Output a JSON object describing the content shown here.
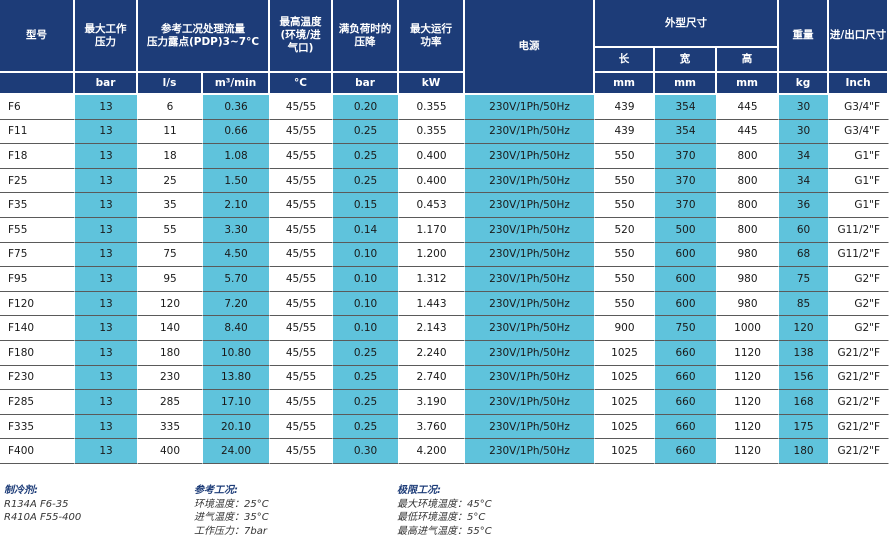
{
  "header": {
    "model": "型号",
    "max_pressure": "最大工作\n压力",
    "flow": "参考工况处理流量\n压力露点(PDP)3~7°C",
    "max_temp": "最高温度\n(环境/进\n气口)",
    "pressure_drop": "满负荷时的\n压降",
    "max_power": "最大运行\n功率",
    "power_supply": "电源",
    "dimensions": "外型尺寸",
    "weight": "重量",
    "inlet_outlet": "进/出口尺寸",
    "dim_length": "长",
    "dim_width": "宽",
    "dim_height": "高"
  },
  "units": {
    "pressure": "bar",
    "flow_ls": "l/s",
    "flow_m3": "m³/min",
    "temp": "°C",
    "drop": "bar",
    "power": "kW",
    "length": "mm",
    "width": "mm",
    "height": "mm",
    "weight": "kg",
    "inlet": "Inch"
  },
  "rows": [
    {
      "model": "F6",
      "pressure": "13",
      "flow_ls": "6",
      "flow_m3": "0.36",
      "temp": "45/55",
      "drop": "0.20",
      "power": "0.355",
      "supply": "230V/1Ph/50Hz",
      "length": "439",
      "width": "354",
      "height": "445",
      "weight": "30",
      "inlet": "G3/4\"F"
    },
    {
      "model": "F11",
      "pressure": "13",
      "flow_ls": "11",
      "flow_m3": "0.66",
      "temp": "45/55",
      "drop": "0.25",
      "power": "0.355",
      "supply": "230V/1Ph/50Hz",
      "length": "439",
      "width": "354",
      "height": "445",
      "weight": "30",
      "inlet": "G3/4\"F"
    },
    {
      "model": "F18",
      "pressure": "13",
      "flow_ls": "18",
      "flow_m3": "1.08",
      "temp": "45/55",
      "drop": "0.25",
      "power": "0.400",
      "supply": "230V/1Ph/50Hz",
      "length": "550",
      "width": "370",
      "height": "800",
      "weight": "34",
      "inlet": "G1\"F"
    },
    {
      "model": "F25",
      "pressure": "13",
      "flow_ls": "25",
      "flow_m3": "1.50",
      "temp": "45/55",
      "drop": "0.25",
      "power": "0.400",
      "supply": "230V/1Ph/50Hz",
      "length": "550",
      "width": "370",
      "height": "800",
      "weight": "34",
      "inlet": "G1\"F"
    },
    {
      "model": "F35",
      "pressure": "13",
      "flow_ls": "35",
      "flow_m3": "2.10",
      "temp": "45/55",
      "drop": "0.15",
      "power": "0.453",
      "supply": "230V/1Ph/50Hz",
      "length": "550",
      "width": "370",
      "height": "800",
      "weight": "36",
      "inlet": "G1\"F"
    },
    {
      "model": "F55",
      "pressure": "13",
      "flow_ls": "55",
      "flow_m3": "3.30",
      "temp": "45/55",
      "drop": "0.14",
      "power": "1.170",
      "supply": "230V/1Ph/50Hz",
      "length": "520",
      "width": "500",
      "height": "800",
      "weight": "60",
      "inlet": "G11/2\"F"
    },
    {
      "model": "F75",
      "pressure": "13",
      "flow_ls": "75",
      "flow_m3": "4.50",
      "temp": "45/55",
      "drop": "0.10",
      "power": "1.200",
      "supply": "230V/1Ph/50Hz",
      "length": "550",
      "width": "600",
      "height": "980",
      "weight": "68",
      "inlet": "G11/2\"F"
    },
    {
      "model": "F95",
      "pressure": "13",
      "flow_ls": "95",
      "flow_m3": "5.70",
      "temp": "45/55",
      "drop": "0.10",
      "power": "1.312",
      "supply": "230V/1Ph/50Hz",
      "length": "550",
      "width": "600",
      "height": "980",
      "weight": "75",
      "inlet": "G2\"F"
    },
    {
      "model": "F120",
      "pressure": "13",
      "flow_ls": "120",
      "flow_m3": "7.20",
      "temp": "45/55",
      "drop": "0.10",
      "power": "1.443",
      "supply": "230V/1Ph/50Hz",
      "length": "550",
      "width": "600",
      "height": "980",
      "weight": "85",
      "inlet": "G2\"F"
    },
    {
      "model": "F140",
      "pressure": "13",
      "flow_ls": "140",
      "flow_m3": "8.40",
      "temp": "45/55",
      "drop": "0.10",
      "power": "2.143",
      "supply": "230V/1Ph/50Hz",
      "length": "900",
      "width": "750",
      "height": "1000",
      "weight": "120",
      "inlet": "G2\"F"
    },
    {
      "model": "F180",
      "pressure": "13",
      "flow_ls": "180",
      "flow_m3": "10.80",
      "temp": "45/55",
      "drop": "0.25",
      "power": "2.240",
      "supply": "230V/1Ph/50Hz",
      "length": "1025",
      "width": "660",
      "height": "1120",
      "weight": "138",
      "inlet": "G21/2\"F"
    },
    {
      "model": "F230",
      "pressure": "13",
      "flow_ls": "230",
      "flow_m3": "13.80",
      "temp": "45/55",
      "drop": "0.25",
      "power": "2.740",
      "supply": "230V/1Ph/50Hz",
      "length": "1025",
      "width": "660",
      "height": "1120",
      "weight": "156",
      "inlet": "G21/2\"F"
    },
    {
      "model": "F285",
      "pressure": "13",
      "flow_ls": "285",
      "flow_m3": "17.10",
      "temp": "45/55",
      "drop": "0.25",
      "power": "3.190",
      "supply": "230V/1Ph/50Hz",
      "length": "1025",
      "width": "660",
      "height": "1120",
      "weight": "168",
      "inlet": "G21/2\"F"
    },
    {
      "model": "F335",
      "pressure": "13",
      "flow_ls": "335",
      "flow_m3": "20.10",
      "temp": "45/55",
      "drop": "0.25",
      "power": "3.760",
      "supply": "230V/1Ph/50Hz",
      "length": "1025",
      "width": "660",
      "height": "1120",
      "weight": "175",
      "inlet": "G21/2\"F"
    },
    {
      "model": "F400",
      "pressure": "13",
      "flow_ls": "400",
      "flow_m3": "24.00",
      "temp": "45/55",
      "drop": "0.30",
      "power": "4.200",
      "supply": "230V/1Ph/50Hz",
      "length": "1025",
      "width": "660",
      "height": "1120",
      "weight": "180",
      "inlet": "G21/2\"F"
    }
  ],
  "notes": {
    "refrigerant": {
      "title": "制冷剂:",
      "lines": [
        "R134A F6-35",
        "R410A F55-400"
      ]
    },
    "reference": {
      "title": "参考工况:",
      "lines": [
        "环境温度：25°C",
        "进气温度：35°C",
        "工作压力：7bar"
      ]
    },
    "limit": {
      "title": "极限工况:",
      "lines": [
        "最大环境温度：45°C",
        "最低环境温度：5°C",
        "最高进气温度：55°C"
      ]
    }
  },
  "colors": {
    "header_bg": "#1d3c78",
    "highlight": "#5fc3dc"
  }
}
